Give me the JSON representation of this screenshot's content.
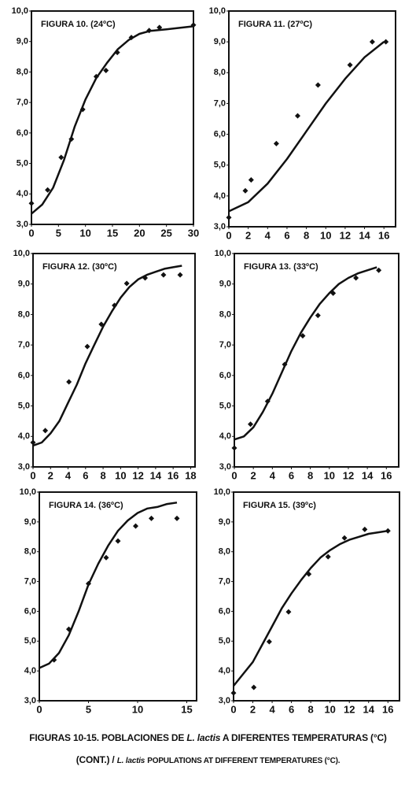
{
  "chart_data": [
    {
      "type": "scatter",
      "title": "FIGURA 10. (24ºC)",
      "xlim": [
        0,
        30
      ],
      "xticks": [
        0,
        5,
        10,
        15,
        20,
        25,
        30
      ],
      "ylim": [
        3,
        10
      ],
      "yticks": [
        {
          "value": 3,
          "label": "3,0"
        },
        {
          "value": 4,
          "label": "4,0"
        },
        {
          "value": 5,
          "label": "5,0"
        },
        {
          "value": 6,
          "label": "6,0"
        },
        {
          "value": 7,
          "label": "7,0"
        },
        {
          "value": 8,
          "label": "8,0"
        },
        {
          "value": 9,
          "label": "9,0"
        },
        {
          "value": 10,
          "label": "10,0"
        }
      ],
      "series": [
        {
          "mode": "markers",
          "color": "#111111",
          "x": [
            0,
            3,
            5.5,
            7.4,
            9.5,
            12,
            13.8,
            15.9,
            18.5,
            21.8,
            23.7,
            30
          ],
          "values": [
            3.69,
            4.13,
            5.2,
            5.8,
            6.77,
            7.85,
            8.05,
            8.64,
            9.13,
            9.36,
            9.46,
            9.54
          ]
        },
        {
          "mode": "line",
          "color": "#111111",
          "x": [
            0,
            2,
            4,
            6,
            8,
            10,
            12,
            14,
            16,
            18,
            20,
            22,
            25,
            30
          ],
          "values": [
            3.35,
            3.65,
            4.2,
            5.1,
            6.2,
            7.1,
            7.8,
            8.3,
            8.75,
            9.05,
            9.25,
            9.35,
            9.4,
            9.5
          ]
        }
      ]
    },
    {
      "type": "scatter",
      "title": "FIGURA 11. (27ºC)",
      "xlim": [
        0,
        17.2
      ],
      "xticks": [
        0,
        2,
        4,
        6,
        8,
        10,
        12,
        14,
        16
      ],
      "ylim": [
        3,
        10
      ],
      "yticks": [
        {
          "value": 3,
          "label": "3,0"
        },
        {
          "value": 4,
          "label": "4,0"
        },
        {
          "value": 5,
          "label": "5,0"
        },
        {
          "value": 6,
          "label": "6,0"
        },
        {
          "value": 7,
          "label": "7,0"
        },
        {
          "value": 8,
          "label": "8,0"
        },
        {
          "value": 9,
          "label": "9,0"
        },
        {
          "value": 10,
          "label": "10,0"
        }
      ],
      "series": [
        {
          "mode": "markers",
          "color": "#111111",
          "x": [
            0,
            1.7,
            2.3,
            4.9,
            7.1,
            9.2,
            12.5,
            14.8,
            16.2
          ],
          "values": [
            3.3,
            4.17,
            4.52,
            5.7,
            6.6,
            7.6,
            8.25,
            9.0,
            9.0
          ]
        },
        {
          "mode": "line",
          "color": "#111111",
          "x": [
            0,
            2,
            4,
            6,
            8,
            10,
            12,
            14,
            16
          ],
          "values": [
            3.5,
            3.8,
            4.4,
            5.2,
            6.1,
            7.0,
            7.8,
            8.5,
            9.0
          ]
        }
      ]
    },
    {
      "type": "scatter",
      "title": "FIGURA 12. (30ºC)",
      "xlim": [
        0,
        18.5
      ],
      "xticks": [
        0,
        2,
        4,
        6,
        8,
        10,
        12,
        14,
        16,
        18
      ],
      "ylim": [
        3,
        10
      ],
      "yticks": [
        {
          "value": 3,
          "label": "3,0"
        },
        {
          "value": 4,
          "label": "4,0"
        },
        {
          "value": 5,
          "label": "5,0"
        },
        {
          "value": 6,
          "label": "6,0"
        },
        {
          "value": 7,
          "label": "7,0"
        },
        {
          "value": 8,
          "label": "8,0"
        },
        {
          "value": 9,
          "label": "9,0"
        },
        {
          "value": 10,
          "label": "10,0"
        }
      ],
      "series": [
        {
          "mode": "markers",
          "color": "#111111",
          "x": [
            0,
            1.4,
            4.1,
            6.2,
            7.8,
            9.3,
            10.7,
            12.8,
            14.9,
            16.8
          ],
          "values": [
            3.8,
            4.19,
            5.79,
            6.95,
            7.68,
            8.3,
            9.02,
            9.2,
            9.3,
            9.3
          ]
        },
        {
          "mode": "line",
          "color": "#111111",
          "x": [
            0,
            1,
            2,
            3,
            4,
            5,
            6,
            7,
            8,
            9,
            10,
            11,
            12,
            13,
            14,
            15,
            16,
            17
          ],
          "values": [
            3.7,
            3.8,
            4.1,
            4.5,
            5.1,
            5.7,
            6.4,
            7.0,
            7.6,
            8.1,
            8.55,
            8.9,
            9.15,
            9.3,
            9.4,
            9.5,
            9.55,
            9.6
          ]
        }
      ]
    },
    {
      "type": "scatter",
      "title": "FIGURA 13.  (33ºC)",
      "xlim": [
        0,
        17.3
      ],
      "xticks": [
        0,
        2,
        4,
        6,
        8,
        10,
        12,
        14,
        16
      ],
      "ylim": [
        3,
        10
      ],
      "yticks": [
        {
          "value": 3,
          "label": "3,0"
        },
        {
          "value": 4,
          "label": "4,0"
        },
        {
          "value": 5,
          "label": "5,0"
        },
        {
          "value": 6,
          "label": "6,0"
        },
        {
          "value": 7,
          "label": "7,0"
        },
        {
          "value": 8,
          "label": "8,0"
        },
        {
          "value": 9,
          "label": "9,0"
        },
        {
          "value": 10,
          "label": "10,0"
        }
      ],
      "series": [
        {
          "mode": "markers",
          "color": "#111111",
          "x": [
            0,
            1.7,
            3.5,
            5.3,
            7.2,
            8.8,
            10.4,
            12.8,
            15.2
          ],
          "values": [
            3.62,
            4.4,
            5.15,
            6.36,
            7.3,
            7.97,
            8.7,
            9.2,
            9.45
          ]
        },
        {
          "mode": "line",
          "color": "#111111",
          "x": [
            0,
            1,
            2,
            3,
            4,
            5,
            6,
            7,
            8,
            9,
            10,
            11,
            12,
            13,
            14,
            15
          ],
          "values": [
            3.9,
            4.0,
            4.3,
            4.8,
            5.4,
            6.1,
            6.8,
            7.4,
            7.9,
            8.35,
            8.7,
            9.0,
            9.2,
            9.35,
            9.45,
            9.55
          ]
        }
      ]
    },
    {
      "type": "scatter",
      "title": "FIGURA 14. (36ºC)",
      "xlim": [
        0,
        16
      ],
      "xticks": [
        0,
        5,
        10,
        15
      ],
      "ylim": [
        3,
        10
      ],
      "yticks": [
        {
          "value": 3,
          "label": "3,0"
        },
        {
          "value": 4,
          "label": "4,0"
        },
        {
          "value": 5,
          "label": "5,0"
        },
        {
          "value": 6,
          "label": "6,0"
        },
        {
          "value": 7,
          "label": "7,0"
        },
        {
          "value": 8,
          "label": "8,0"
        },
        {
          "value": 9,
          "label": "9,0"
        },
        {
          "value": 10,
          "label": "10,0"
        }
      ],
      "series": [
        {
          "mode": "markers",
          "color": "#111111",
          "x": [
            1.5,
            3,
            5,
            6.8,
            8,
            9.8,
            11.4,
            14
          ],
          "values": [
            4.37,
            5.4,
            6.93,
            7.8,
            8.36,
            8.86,
            9.12,
            9.12
          ]
        },
        {
          "mode": "line",
          "color": "#111111",
          "x": [
            0,
            1,
            2,
            3,
            4,
            5,
            6,
            7,
            8,
            9,
            10,
            11,
            12,
            13,
            14
          ],
          "values": [
            4.1,
            4.25,
            4.6,
            5.2,
            6.0,
            6.9,
            7.6,
            8.2,
            8.7,
            9.05,
            9.3,
            9.45,
            9.5,
            9.6,
            9.65
          ]
        }
      ]
    },
    {
      "type": "scatter",
      "title": "FIGURA 15. (39ºc)",
      "xlim": [
        0,
        17.2
      ],
      "xticks": [
        0,
        2,
        4,
        6,
        8,
        10,
        12,
        14,
        16
      ],
      "ylim": [
        3,
        10
      ],
      "yticks": [
        {
          "value": 3,
          "label": "3,0"
        },
        {
          "value": 4,
          "label": "4,0"
        },
        {
          "value": 5,
          "label": "5,0"
        },
        {
          "value": 6,
          "label": "6,0"
        },
        {
          "value": 7,
          "label": "7,0"
        },
        {
          "value": 8,
          "label": "8,0"
        },
        {
          "value": 9,
          "label": "9,0"
        },
        {
          "value": 10,
          "label": "10,0"
        }
      ],
      "series": [
        {
          "mode": "markers",
          "color": "#111111",
          "x": [
            0,
            2.1,
            3.7,
            5.7,
            7.8,
            9.8,
            11.5,
            13.6,
            16
          ],
          "values": [
            3.26,
            3.45,
            4.98,
            5.98,
            7.25,
            7.83,
            8.46,
            8.75,
            8.7
          ]
        },
        {
          "mode": "line",
          "color": "#111111",
          "x": [
            0,
            1,
            2,
            3,
            4,
            5,
            6,
            7,
            8,
            9,
            10,
            11,
            12,
            13,
            14,
            15,
            16
          ],
          "values": [
            3.5,
            3.9,
            4.3,
            4.9,
            5.5,
            6.1,
            6.6,
            7.05,
            7.45,
            7.8,
            8.05,
            8.25,
            8.4,
            8.5,
            8.6,
            8.65,
            8.7
          ]
        }
      ]
    }
  ],
  "caption": [
    "FIGURAS 10-15. POBLACIONES DE",
    "L. lactis",
    "A DIFERENTES TEMPERATURAS (°C)",
    "(CONT.)  /",
    "L. lactis",
    "POPULATIONS AT DIFFERENT TEMPERATURES (°C)."
  ]
}
